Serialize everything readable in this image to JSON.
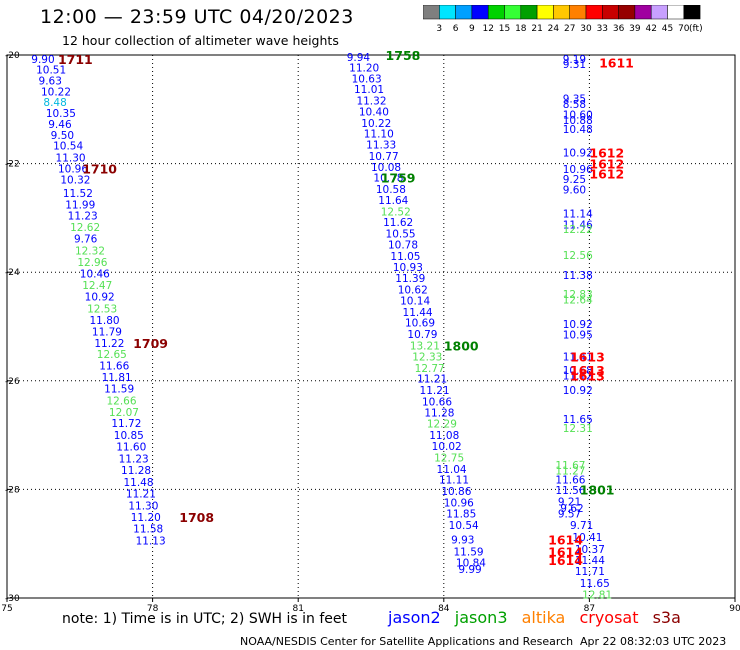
{
  "title": "12:00 — 23:59 UTC 04/20/2023",
  "subtitle": "12 hour collection of altimeter wave heights",
  "scale": {
    "unit": "(ft)",
    "colors": [
      "#7f7f7f",
      "#00e5ff",
      "#00a0ff",
      "#0000ff",
      "#00d200",
      "#35ff35",
      "#00a000",
      "#ffff00",
      "#ffc800",
      "#ff8000",
      "#ff0000",
      "#c80000",
      "#960000",
      "#a000a0",
      "#c8a0ff",
      "#ffffff",
      "#000000"
    ],
    "labels": [
      "3",
      "6",
      "9",
      "12",
      "15",
      "18",
      "21",
      "24",
      "27",
      "30",
      "33",
      "36",
      "39",
      "42",
      "45",
      "70"
    ]
  },
  "note": "note:  1) Time is in UTC;  2) SWH is in feet",
  "legend": [
    {
      "name": "jason2",
      "color": "#0000ff"
    },
    {
      "name": "jason3",
      "color": "#00a000"
    },
    {
      "name": "altika",
      "color": "#ff8000"
    },
    {
      "name": "cryosat",
      "color": "#ff0000"
    },
    {
      "name": "s3a",
      "color": "#8b0000"
    }
  ],
  "credit": "NOAA/NESDIS Center for Satellite Applications and Research",
  "timestamp": "Apr 22 08:32:03 UTC 2023",
  "chart_data": {
    "type": "scatter",
    "xlabel": "",
    "ylabel": "",
    "xlim": [
      75,
      90
    ],
    "ylim": [
      -30,
      -20
    ],
    "xticks": [
      75,
      78,
      81,
      84,
      87,
      90
    ],
    "yticks": [
      -20,
      -22,
      -24,
      -26,
      -28,
      -30
    ],
    "ytick_labels": [
      "-20",
      "-22",
      "-24",
      "-26",
      "-28",
      "-30"
    ],
    "grid": true,
    "points": [
      {
        "x": 75.5,
        "y": -20.07,
        "v": "9.90",
        "c": "#0000ff"
      },
      {
        "x": 75.6,
        "y": -20.27,
        "v": "10.51",
        "c": "#0000ff"
      },
      {
        "x": 75.65,
        "y": -20.47,
        "v": "9.63",
        "c": "#0000ff"
      },
      {
        "x": 75.7,
        "y": -20.67,
        "v": "10.22",
        "c": "#0000ff"
      },
      {
        "x": 75.75,
        "y": -20.87,
        "v": "8.48",
        "c": "#00b8e0"
      },
      {
        "x": 75.8,
        "y": -21.07,
        "v": "10.35",
        "c": "#0000ff"
      },
      {
        "x": 75.85,
        "y": -21.27,
        "v": "9.46",
        "c": "#0000ff"
      },
      {
        "x": 75.9,
        "y": -21.47,
        "v": "9.50",
        "c": "#0000ff"
      },
      {
        "x": 75.95,
        "y": -21.67,
        "v": "10.54",
        "c": "#0000ff"
      },
      {
        "x": 76.0,
        "y": -21.89,
        "v": "11.30",
        "c": "#0000ff"
      },
      {
        "x": 76.05,
        "y": -22.09,
        "v": "10.96",
        "c": "#0000ff"
      },
      {
        "x": 76.1,
        "y": -22.29,
        "v": "10.32",
        "c": "#0000ff"
      },
      {
        "x": 76.15,
        "y": -22.54,
        "v": "11.52",
        "c": "#0000ff"
      },
      {
        "x": 76.2,
        "y": -22.75,
        "v": "11.99",
        "c": "#0000ff"
      },
      {
        "x": 76.25,
        "y": -22.96,
        "v": "11.23",
        "c": "#0000ff"
      },
      {
        "x": 76.3,
        "y": -23.17,
        "v": "12.62",
        "c": "#55e055"
      },
      {
        "x": 76.38,
        "y": -23.38,
        "v": "9.76",
        "c": "#0000ff"
      },
      {
        "x": 76.4,
        "y": -23.6,
        "v": "12.32",
        "c": "#55e055"
      },
      {
        "x": 76.45,
        "y": -23.81,
        "v": "12.96",
        "c": "#55e055"
      },
      {
        "x": 76.5,
        "y": -24.02,
        "v": "10.46",
        "c": "#0000ff"
      },
      {
        "x": 76.55,
        "y": -24.24,
        "v": "12.47",
        "c": "#55e055"
      },
      {
        "x": 76.6,
        "y": -24.45,
        "v": "10.92",
        "c": "#0000ff"
      },
      {
        "x": 76.65,
        "y": -24.67,
        "v": "12.53",
        "c": "#55e055"
      },
      {
        "x": 76.7,
        "y": -24.88,
        "v": "11.80",
        "c": "#0000ff"
      },
      {
        "x": 76.75,
        "y": -25.09,
        "v": "11.79",
        "c": "#0000ff"
      },
      {
        "x": 76.8,
        "y": -25.3,
        "v": "11.22",
        "c": "#0000ff"
      },
      {
        "x": 76.85,
        "y": -25.51,
        "v": "12.65",
        "c": "#55e055"
      },
      {
        "x": 76.9,
        "y": -25.72,
        "v": "11.66",
        "c": "#0000ff"
      },
      {
        "x": 76.95,
        "y": -25.93,
        "v": "11.81",
        "c": "#0000ff"
      },
      {
        "x": 77.0,
        "y": -26.14,
        "v": "11.59",
        "c": "#0000ff"
      },
      {
        "x": 77.05,
        "y": -26.36,
        "v": "12.66",
        "c": "#55e055"
      },
      {
        "x": 77.1,
        "y": -26.57,
        "v": "12.07",
        "c": "#55e055"
      },
      {
        "x": 77.15,
        "y": -26.78,
        "v": "11.72",
        "c": "#0000ff"
      },
      {
        "x": 77.2,
        "y": -27.0,
        "v": "10.85",
        "c": "#0000ff"
      },
      {
        "x": 77.25,
        "y": -27.21,
        "v": "11.60",
        "c": "#0000ff"
      },
      {
        "x": 77.3,
        "y": -27.43,
        "v": "11.23",
        "c": "#0000ff"
      },
      {
        "x": 77.35,
        "y": -27.64,
        "v": "11.28",
        "c": "#0000ff"
      },
      {
        "x": 77.4,
        "y": -27.86,
        "v": "11.48",
        "c": "#0000ff"
      },
      {
        "x": 77.45,
        "y": -28.08,
        "v": "11.21",
        "c": "#0000ff"
      },
      {
        "x": 77.5,
        "y": -28.3,
        "v": "11.30",
        "c": "#0000ff"
      },
      {
        "x": 77.55,
        "y": -28.51,
        "v": "11.20",
        "c": "#0000ff"
      },
      {
        "x": 77.6,
        "y": -28.72,
        "v": "11.58",
        "c": "#0000ff"
      },
      {
        "x": 77.65,
        "y": -28.94,
        "v": "11.13",
        "c": "#0000ff"
      },
      {
        "x": 82.0,
        "y": -20.04,
        "v": "9.94",
        "c": "#0000ff"
      },
      {
        "x": 82.05,
        "y": -20.23,
        "v": "11.20",
        "c": "#0000ff"
      },
      {
        "x": 82.1,
        "y": -20.43,
        "v": "10.63",
        "c": "#0000ff"
      },
      {
        "x": 82.15,
        "y": -20.63,
        "v": "11.01",
        "c": "#0000ff"
      },
      {
        "x": 82.2,
        "y": -20.84,
        "v": "11.32",
        "c": "#0000ff"
      },
      {
        "x": 82.25,
        "y": -21.04,
        "v": "10.40",
        "c": "#0000ff"
      },
      {
        "x": 82.3,
        "y": -21.25,
        "v": "10.22",
        "c": "#0000ff"
      },
      {
        "x": 82.35,
        "y": -21.45,
        "v": "11.10",
        "c": "#0000ff"
      },
      {
        "x": 82.4,
        "y": -21.65,
        "v": "11.33",
        "c": "#0000ff"
      },
      {
        "x": 82.45,
        "y": -21.86,
        "v": "10.77",
        "c": "#0000ff"
      },
      {
        "x": 82.5,
        "y": -22.06,
        "v": "10.08",
        "c": "#0000ff"
      },
      {
        "x": 82.55,
        "y": -22.26,
        "v": "10.78",
        "c": "#0000ff"
      },
      {
        "x": 82.6,
        "y": -22.47,
        "v": "10.58",
        "c": "#0000ff"
      },
      {
        "x": 82.65,
        "y": -22.67,
        "v": "11.64",
        "c": "#0000ff"
      },
      {
        "x": 82.7,
        "y": -22.88,
        "v": "12.52",
        "c": "#55e055"
      },
      {
        "x": 82.75,
        "y": -23.08,
        "v": "11.62",
        "c": "#0000ff"
      },
      {
        "x": 82.8,
        "y": -23.29,
        "v": "10.55",
        "c": "#0000ff"
      },
      {
        "x": 82.85,
        "y": -23.49,
        "v": "10.78",
        "c": "#0000ff"
      },
      {
        "x": 82.9,
        "y": -23.7,
        "v": "11.05",
        "c": "#0000ff"
      },
      {
        "x": 82.95,
        "y": -23.9,
        "v": "10.93",
        "c": "#0000ff"
      },
      {
        "x": 83.0,
        "y": -24.11,
        "v": "11.39",
        "c": "#0000ff"
      },
      {
        "x": 83.05,
        "y": -24.32,
        "v": "10.62",
        "c": "#0000ff"
      },
      {
        "x": 83.1,
        "y": -24.52,
        "v": "10.14",
        "c": "#0000ff"
      },
      {
        "x": 83.15,
        "y": -24.73,
        "v": "11.44",
        "c": "#0000ff"
      },
      {
        "x": 83.2,
        "y": -24.93,
        "v": "10.69",
        "c": "#0000ff"
      },
      {
        "x": 83.25,
        "y": -25.14,
        "v": "10.79",
        "c": "#0000ff"
      },
      {
        "x": 83.3,
        "y": -25.35,
        "v": "13.21",
        "c": "#55e055"
      },
      {
        "x": 83.35,
        "y": -25.55,
        "v": "12.33",
        "c": "#55e055"
      },
      {
        "x": 83.4,
        "y": -25.76,
        "v": "12.77",
        "c": "#55e055"
      },
      {
        "x": 83.45,
        "y": -25.96,
        "v": "11.21",
        "c": "#0000ff"
      },
      {
        "x": 83.5,
        "y": -26.17,
        "v": "11.21",
        "c": "#0000ff"
      },
      {
        "x": 83.55,
        "y": -26.38,
        "v": "10.66",
        "c": "#0000ff"
      },
      {
        "x": 83.6,
        "y": -26.58,
        "v": "11.28",
        "c": "#0000ff"
      },
      {
        "x": 83.65,
        "y": -26.79,
        "v": "12.29",
        "c": "#55e055"
      },
      {
        "x": 83.7,
        "y": -27.0,
        "v": "11.08",
        "c": "#0000ff"
      },
      {
        "x": 83.75,
        "y": -27.2,
        "v": "10.02",
        "c": "#0000ff"
      },
      {
        "x": 83.8,
        "y": -27.41,
        "v": "12.75",
        "c": "#55e055"
      },
      {
        "x": 83.85,
        "y": -27.62,
        "v": "11.04",
        "c": "#0000ff"
      },
      {
        "x": 83.9,
        "y": -27.82,
        "v": "11.11",
        "c": "#0000ff"
      },
      {
        "x": 83.95,
        "y": -28.03,
        "v": "10.86",
        "c": "#0000ff"
      },
      {
        "x": 84.0,
        "y": -28.24,
        "v": "10.96",
        "c": "#0000ff"
      },
      {
        "x": 84.05,
        "y": -28.44,
        "v": "11.85",
        "c": "#0000ff"
      },
      {
        "x": 84.1,
        "y": -28.66,
        "v": "10.54",
        "c": "#0000ff"
      },
      {
        "x": 84.15,
        "y": -28.92,
        "v": "9.93",
        "c": "#0000ff"
      },
      {
        "x": 84.2,
        "y": -29.14,
        "v": "11.59",
        "c": "#0000ff"
      },
      {
        "x": 84.25,
        "y": -29.35,
        "v": "10.84",
        "c": "#0000ff"
      },
      {
        "x": 84.3,
        "y": -29.47,
        "v": "9.99",
        "c": "#0000ff"
      },
      {
        "x": 86.45,
        "y": -20.07,
        "v": "9.19",
        "c": "#0000ff"
      },
      {
        "x": 86.45,
        "y": -20.17,
        "v": "9.31",
        "c": "#0000ff"
      },
      {
        "x": 86.45,
        "y": -20.8,
        "v": "9.35",
        "c": "#0000ff"
      },
      {
        "x": 86.45,
        "y": -20.9,
        "v": "8.58",
        "c": "#0000ff"
      },
      {
        "x": 86.45,
        "y": -21.1,
        "v": "10.60",
        "c": "#0000ff"
      },
      {
        "x": 86.45,
        "y": -21.2,
        "v": "10.88",
        "c": "#0000ff"
      },
      {
        "x": 86.45,
        "y": -21.36,
        "v": "10.48",
        "c": "#0000ff"
      },
      {
        "x": 86.45,
        "y": -21.8,
        "v": "10.92",
        "c": "#0000ff"
      },
      {
        "x": 86.45,
        "y": -22.1,
        "v": "10.96",
        "c": "#0000ff"
      },
      {
        "x": 86.45,
        "y": -22.28,
        "v": "9.25",
        "c": "#0000ff"
      },
      {
        "x": 86.45,
        "y": -22.48,
        "v": "9.60",
        "c": "#0000ff"
      },
      {
        "x": 86.45,
        "y": -22.92,
        "v": "11.14",
        "c": "#0000ff"
      },
      {
        "x": 86.45,
        "y": -23.12,
        "v": "11.46",
        "c": "#0000ff"
      },
      {
        "x": 86.45,
        "y": -23.2,
        "v": "12.22",
        "c": "#55e055"
      },
      {
        "x": 86.45,
        "y": -23.68,
        "v": "12.56",
        "c": "#55e055"
      },
      {
        "x": 86.45,
        "y": -24.05,
        "v": "11.38",
        "c": "#0000ff"
      },
      {
        "x": 86.45,
        "y": -24.4,
        "v": "12.83",
        "c": "#55e055"
      },
      {
        "x": 86.45,
        "y": -24.5,
        "v": "12.64",
        "c": "#55e055"
      },
      {
        "x": 86.45,
        "y": -24.95,
        "v": "10.92",
        "c": "#0000ff"
      },
      {
        "x": 86.45,
        "y": -25.15,
        "v": "10.95",
        "c": "#0000ff"
      },
      {
        "x": 86.45,
        "y": -25.55,
        "v": "11.41",
        "c": "#0000ff"
      },
      {
        "x": 86.45,
        "y": -25.8,
        "v": "10.68",
        "c": "#0000ff"
      },
      {
        "x": 86.45,
        "y": -25.9,
        "v": "11.12",
        "c": "#0000ff"
      },
      {
        "x": 86.45,
        "y": -26.17,
        "v": "10.92",
        "c": "#0000ff"
      },
      {
        "x": 86.45,
        "y": -26.7,
        "v": "11.65",
        "c": "#0000ff"
      },
      {
        "x": 86.45,
        "y": -26.87,
        "v": "12.31",
        "c": "#55e055"
      },
      {
        "x": 86.3,
        "y": -27.55,
        "v": "11.67",
        "c": "#55e055"
      },
      {
        "x": 86.3,
        "y": -27.65,
        "v": "11.27",
        "c": "#55e055"
      },
      {
        "x": 86.3,
        "y": -27.82,
        "v": "11.66",
        "c": "#0000ff"
      },
      {
        "x": 86.3,
        "y": -28.01,
        "v": "11.56",
        "c": "#0000ff"
      },
      {
        "x": 86.35,
        "y": -28.22,
        "v": "9.21",
        "c": "#0000ff"
      },
      {
        "x": 86.4,
        "y": -28.34,
        "v": "9.62",
        "c": "#0000ff"
      },
      {
        "x": 86.35,
        "y": -28.44,
        "v": "9.57",
        "c": "#0000ff"
      },
      {
        "x": 86.6,
        "y": -28.66,
        "v": "9.71",
        "c": "#0000ff"
      },
      {
        "x": 86.65,
        "y": -28.88,
        "v": "10.41",
        "c": "#0000ff"
      },
      {
        "x": 86.7,
        "y": -29.1,
        "v": "10.37",
        "c": "#0000ff"
      },
      {
        "x": 86.7,
        "y": -29.3,
        "v": "11.44",
        "c": "#0000ff"
      },
      {
        "x": 86.7,
        "y": -29.5,
        "v": "11.71",
        "c": "#0000ff"
      },
      {
        "x": 86.8,
        "y": -29.72,
        "v": "11.65",
        "c": "#0000ff"
      },
      {
        "x": 86.85,
        "y": -29.94,
        "v": "12.81",
        "c": "#55e055"
      }
    ],
    "labels": [
      {
        "x": 76.05,
        "y": -20.07,
        "t": "1711",
        "c": "#8b0000"
      },
      {
        "x": 76.55,
        "y": -22.09,
        "t": "1710",
        "c": "#8b0000"
      },
      {
        "x": 77.6,
        "y": -25.3,
        "t": "1709",
        "c": "#8b0000"
      },
      {
        "x": 78.55,
        "y": -28.51,
        "t": "1708",
        "c": "#8b0000"
      },
      {
        "x": 82.8,
        "y": -20.0,
        "t": "1758",
        "c": "#008000"
      },
      {
        "x": 82.7,
        "y": -22.26,
        "t": "1759",
        "c": "#008000"
      },
      {
        "x": 84.0,
        "y": -25.35,
        "t": "1800",
        "c": "#008000"
      },
      {
        "x": 86.8,
        "y": -28.0,
        "t": "1801",
        "c": "#008000"
      },
      {
        "x": 87.2,
        "y": -20.14,
        "t": "1611",
        "c": "#ff0000"
      },
      {
        "x": 87.0,
        "y": -21.8,
        "t": "1612",
        "c": "#ff0000"
      },
      {
        "x": 87.0,
        "y": -22.0,
        "t": "1612",
        "c": "#ff0000"
      },
      {
        "x": 87.0,
        "y": -22.18,
        "t": "1612",
        "c": "#ff0000"
      },
      {
        "x": 86.6,
        "y": -25.55,
        "t": "1613",
        "c": "#ff0000"
      },
      {
        "x": 86.6,
        "y": -25.8,
        "t": "1613",
        "c": "#ff0000"
      },
      {
        "x": 86.6,
        "y": -25.9,
        "t": "1613",
        "c": "#ff0000"
      },
      {
        "x": 86.15,
        "y": -28.92,
        "t": "1614",
        "c": "#ff0000"
      },
      {
        "x": 86.15,
        "y": -29.14,
        "t": "1614",
        "c": "#ff0000"
      },
      {
        "x": 86.15,
        "y": -29.3,
        "t": "1614",
        "c": "#ff0000"
      }
    ]
  }
}
